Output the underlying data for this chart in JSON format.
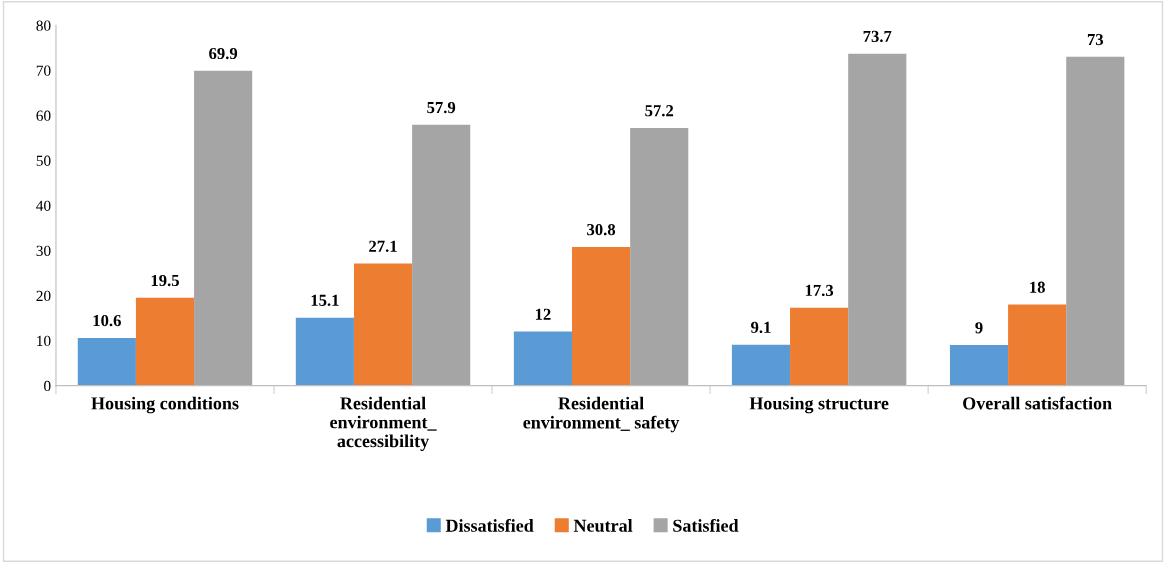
{
  "chart_data": {
    "type": "bar",
    "categories": [
      "Housing conditions",
      "Residential\nenvironment_\naccessibility",
      "Residential\nenvironment_ safety",
      "Housing structure",
      "Overall satisfaction"
    ],
    "series": [
      {
        "name": "Dissatisfied",
        "color": "#5b9bd5",
        "values": [
          10.6,
          15.1,
          12,
          9.1,
          9
        ]
      },
      {
        "name": "Neutral",
        "color": "#ed7d31",
        "values": [
          19.5,
          27.1,
          30.8,
          17.3,
          18
        ]
      },
      {
        "name": "Satisfied",
        "color": "#a5a5a5",
        "values": [
          69.9,
          57.9,
          57.2,
          73.7,
          73
        ]
      }
    ],
    "ylim": [
      0,
      80
    ],
    "yticks": [
      0,
      10,
      20,
      30,
      40,
      50,
      60,
      70,
      80
    ],
    "data_labels": true,
    "grid": false,
    "legend": "bottom"
  }
}
